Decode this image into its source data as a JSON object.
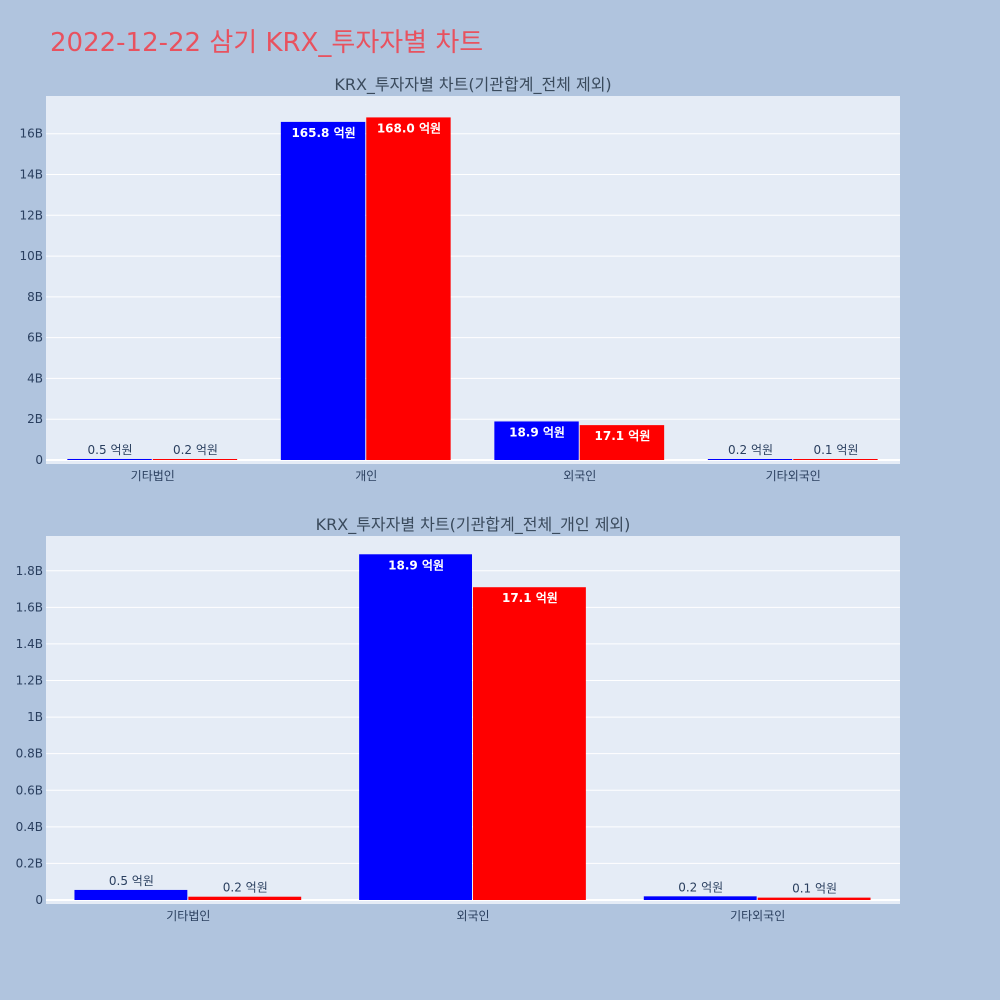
{
  "title": "2022-12-22 삼기 KRX_투자자별 차트",
  "colors": {
    "series_a": "#0000ff",
    "series_b": "#ff0000",
    "plot_bg": "#e5ecf6",
    "grid": "#ffffff"
  },
  "chart_data": [
    {
      "type": "bar",
      "title": "KRX_투자자별 차트(기관합계_전체 제외)",
      "categories": [
        "기타법인",
        "개인",
        "외국인",
        "기타외국인"
      ],
      "series": [
        {
          "values": [
            50000000,
            16580000000,
            1890000000,
            20000000
          ],
          "labels": [
            "0.5 억원",
            "165.8 억원",
            "18.9 억원",
            "0.2 억원"
          ]
        },
        {
          "values": [
            20000000,
            16800000000,
            1710000000,
            10000000
          ],
          "labels": [
            "0.2 억원",
            "168.0 억원",
            "17.1 억원",
            "0.1 억원"
          ]
        }
      ],
      "yticks": [
        0,
        2000000000,
        4000000000,
        6000000000,
        8000000000,
        10000000000,
        12000000000,
        14000000000,
        16000000000
      ],
      "ytick_labels": [
        "0",
        "2B",
        "4B",
        "6B",
        "8B",
        "10B",
        "12B",
        "14B",
        "16B"
      ],
      "ylim": [
        0,
        17850000000
      ],
      "grid": true
    },
    {
      "type": "bar",
      "title": "KRX_투자자별 차트(기관합계_전체_개인 제외)",
      "categories": [
        "기타법인",
        "외국인",
        "기타외국인"
      ],
      "series": [
        {
          "values": [
            55000000,
            1890000000,
            20000000
          ],
          "labels": [
            "0.5 억원",
            "18.9 억원",
            "0.2 억원"
          ]
        },
        {
          "values": [
            18000000,
            1710000000,
            13000000
          ],
          "labels": [
            "0.2 억원",
            "17.1 억원",
            "0.1 억원"
          ]
        }
      ],
      "yticks": [
        0,
        200000000,
        400000000,
        600000000,
        800000000,
        1000000000,
        1200000000,
        1400000000,
        1600000000,
        1800000000
      ],
      "ytick_labels": [
        "0",
        "0.2B",
        "0.4B",
        "0.6B",
        "0.8B",
        "1B",
        "1.2B",
        "1.4B",
        "1.6B",
        "1.8B"
      ],
      "ylim": [
        0,
        1990000000
      ],
      "grid": true
    }
  ]
}
